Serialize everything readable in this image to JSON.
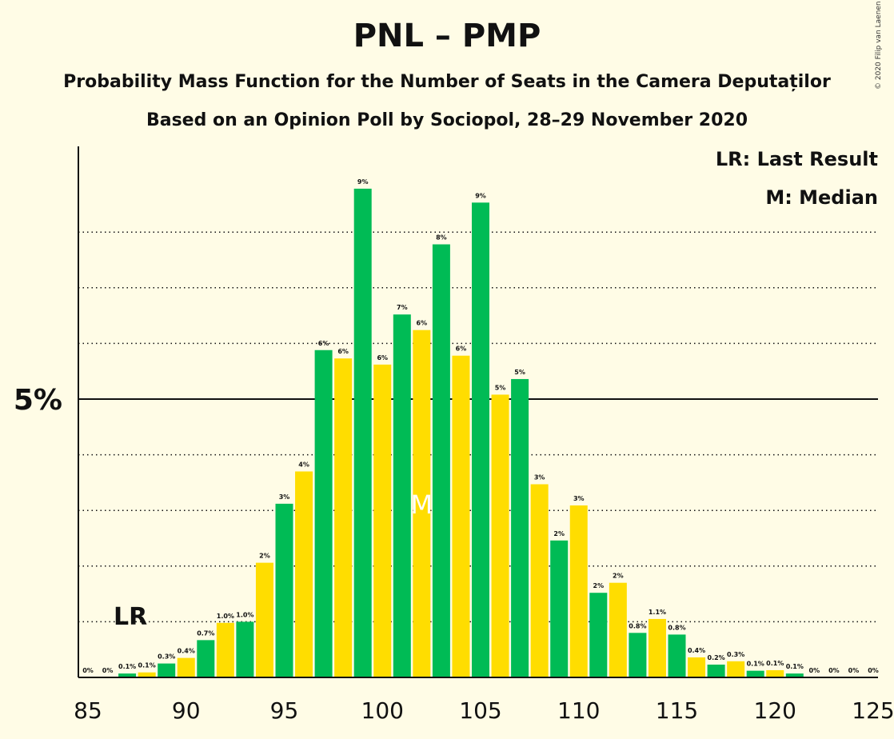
{
  "title": "PNL – PMP",
  "subtitle1": "Probability Mass Function for the Number of Seats in the Camera Deputaților",
  "subtitle2": "Based on an Opinion Poll by Sociopol, 28–29 November 2020",
  "copyright": "© 2020 Filip van Laenen",
  "legend": {
    "last_result": "LR: Last Result",
    "median": "M: Median"
  },
  "colors": {
    "green": "#00BB55",
    "yellow": "#FFDD00",
    "background": "#FFFCE6",
    "axis": "#111111"
  },
  "chart_data": {
    "type": "bar",
    "x": [
      85,
      86,
      87,
      88,
      89,
      90,
      91,
      92,
      93,
      94,
      95,
      96,
      97,
      98,
      99,
      100,
      101,
      102,
      103,
      104,
      105,
      106,
      107,
      108,
      109,
      110,
      111,
      112,
      113,
      114,
      115,
      116,
      117,
      118,
      119,
      120,
      121,
      122,
      123,
      124,
      125
    ],
    "values": [
      0,
      0,
      0.07,
      0.09,
      0.25,
      0.35,
      0.67,
      0.98,
      1.0,
      2.06,
      3.12,
      3.7,
      5.88,
      5.73,
      8.78,
      5.62,
      6.52,
      6.24,
      7.78,
      5.78,
      8.53,
      5.08,
      5.36,
      3.47,
      2.46,
      3.09,
      1.52,
      1.7,
      0.8,
      1.05,
      0.77,
      0.36,
      0.23,
      0.29,
      0.12,
      0.13,
      0.07,
      0,
      0,
      0,
      0
    ],
    "labels": [
      "0%",
      "0%",
      "0.1%",
      "0.1%",
      "0.3%",
      "0.4%",
      "0.7%",
      "1.0%",
      "1.0%",
      "2%",
      "3%",
      "4%",
      "6%",
      "6%",
      "9%",
      "6%",
      "7%",
      "6%",
      "8%",
      "6%",
      "9%",
      "5%",
      "5%",
      "3%",
      "2%",
      "3%",
      "2%",
      "2%",
      "0.8%",
      "1.1%",
      "0.8%",
      "0.4%",
      "0.2%",
      "0.3%",
      "0.1%",
      "0.1%",
      "0.1%",
      "0%",
      "0%",
      "0%",
      "0%"
    ],
    "xticks": [
      85,
      90,
      95,
      100,
      105,
      110,
      115,
      120,
      125
    ],
    "xtick_labels": [
      "85",
      "90",
      "95",
      "100",
      "105",
      "110",
      "115",
      "120",
      "125"
    ],
    "ytick_label": "5%",
    "ytick_value": 5,
    "ylim": [
      0,
      9.6
    ],
    "last_result": 87,
    "last_result_label": "LR",
    "median": 102,
    "median_label": "M",
    "grid": "dotted every 1%"
  }
}
